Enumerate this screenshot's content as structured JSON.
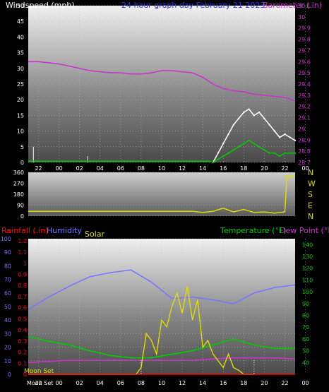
{
  "chart_data": [
    {
      "type": "line",
      "title": "24 hour graph day   February 21 2023",
      "left_axis_label": "Windspeed (mph)",
      "right_axis_label": "Barometer (.in)",
      "x_ticks": [
        "22",
        "00",
        "02",
        "04",
        "06",
        "08",
        "10",
        "12",
        "14",
        "16",
        "18",
        "20",
        "22",
        "00"
      ],
      "left_ticks": [
        "0",
        "5",
        "10",
        "15",
        "20",
        "25",
        "30",
        "35",
        "40",
        "45",
        "50"
      ],
      "right_ticks": [
        "28.7",
        "28.8",
        "28.9",
        "29",
        "29.1",
        "29.2",
        "29.3",
        "29.4",
        "29.5",
        "29.6",
        "29.7",
        "29.8",
        "29.9",
        "30",
        "30.1"
      ],
      "left_ylim": [
        0,
        50
      ],
      "right_ylim": [
        28.7,
        30.1
      ],
      "series": [
        {
          "name": "Barometer",
          "color": "#cc33cc",
          "axis": "right",
          "x": [
            0,
            1,
            2,
            3,
            4,
            5,
            6,
            7,
            8,
            9,
            10,
            11,
            12,
            13,
            14,
            15,
            16,
            17,
            18,
            19,
            20,
            21,
            22,
            23,
            24,
            25,
            26
          ],
          "values": [
            29.6,
            29.6,
            29.59,
            29.58,
            29.56,
            29.54,
            29.52,
            29.51,
            29.5,
            29.5,
            29.49,
            29.49,
            29.5,
            29.52,
            29.52,
            29.51,
            29.5,
            29.46,
            29.4,
            29.36,
            29.34,
            29.33,
            29.31,
            29.3,
            29.29,
            29.28,
            29.25
          ]
        },
        {
          "name": "Wind gust",
          "color": "#ffffff",
          "axis": "left",
          "x": [
            18,
            18.5,
            19,
            19.5,
            20,
            20.5,
            21,
            21.5,
            22,
            22.5,
            23,
            23.5,
            24,
            24.5,
            25,
            25.5,
            26
          ],
          "values": [
            0,
            3,
            6,
            9,
            12,
            14,
            16,
            17,
            15,
            16,
            14,
            12,
            10,
            8,
            9,
            8,
            7
          ]
        },
        {
          "name": "Wind average",
          "color": "#00cc00",
          "axis": "left",
          "x": [
            18,
            18.5,
            19,
            19.5,
            20,
            20.5,
            21,
            21.5,
            22,
            22.5,
            23,
            23.5,
            24,
            24.5,
            25,
            25.5,
            26
          ],
          "values": [
            0,
            1,
            2,
            3,
            4,
            5,
            6,
            7,
            6,
            5,
            4,
            3,
            3,
            2,
            3,
            3,
            3
          ]
        }
      ]
    },
    {
      "type": "line",
      "title": "",
      "left_ticks": [
        "0",
        "90",
        "180",
        "270",
        "360"
      ],
      "right_labels": [
        "N",
        "W",
        "S",
        "E",
        "N"
      ],
      "ylim": [
        0,
        360
      ],
      "series": [
        {
          "name": "Wind direction",
          "color": "#dddd00",
          "x": [
            0,
            2,
            4,
            6,
            8,
            10,
            12,
            14,
            16,
            17,
            18,
            19,
            20,
            21,
            22,
            23,
            24,
            25,
            25.2,
            26
          ],
          "values": [
            40,
            40,
            40,
            40,
            40,
            40,
            40,
            40,
            40,
            30,
            40,
            65,
            35,
            55,
            30,
            35,
            25,
            35,
            330,
            325
          ]
        }
      ]
    },
    {
      "type": "line",
      "legend": [
        "Rainfall (.in)",
        "Humidity",
        "Solar",
        "Temperature (°F)",
        "Dew Point (°F)"
      ],
      "left_ticks": [
        "0",
        "10",
        "20",
        "30",
        "40",
        "50",
        "60",
        "70",
        "80",
        "90",
        "100"
      ],
      "rain_ticks": [
        "0",
        "0.1",
        "0.2",
        "0.3",
        "0.4",
        "0.5",
        "0.6",
        "0.7",
        "0.8",
        "0.9",
        "1",
        "1.1",
        "1.2"
      ],
      "right_ticks": [
        "40",
        "50",
        "60",
        "70",
        "80",
        "90",
        "100",
        "110",
        "120",
        "130",
        "140"
      ],
      "x_ticks": [
        "22",
        "00",
        "02",
        "04",
        "06",
        "08",
        "10",
        "12",
        "14",
        "16",
        "18",
        "20",
        "22",
        "00"
      ],
      "left_ylim": [
        0,
        100
      ],
      "right_ylim": [
        30,
        145
      ],
      "moon_label": "Moon Set",
      "series": [
        {
          "name": "Humidity",
          "color": "#7777ff",
          "axis": "left",
          "x": [
            0,
            2,
            4,
            6,
            8,
            10,
            12,
            14,
            16,
            18,
            20,
            22,
            24,
            26
          ],
          "values": [
            48,
            57,
            65,
            72,
            75,
            77,
            68,
            56,
            57,
            55,
            52,
            60,
            64,
            66
          ]
        },
        {
          "name": "Temperature",
          "color": "#00cc00",
          "axis": "right",
          "x": [
            0,
            2,
            4,
            6,
            8,
            10,
            12,
            14,
            16,
            18,
            20,
            22,
            24,
            26
          ],
          "values": [
            62,
            58,
            55,
            50,
            46,
            44,
            44,
            47,
            50,
            55,
            60,
            55,
            52,
            52
          ]
        },
        {
          "name": "Dew Point",
          "color": "#cc33cc",
          "axis": "right",
          "x": [
            0,
            2,
            4,
            6,
            8,
            10,
            12,
            14,
            16,
            18,
            20,
            22,
            24,
            26
          ],
          "values": [
            40,
            41,
            42,
            42,
            42,
            42,
            42,
            42,
            42,
            43,
            44,
            44,
            44,
            43
          ]
        },
        {
          "name": "Solar",
          "color": "#dddd00",
          "axis": "left",
          "x": [
            0,
            10.5,
            11,
            11.5,
            12,
            12.5,
            13,
            13.5,
            14,
            14.5,
            15,
            15.5,
            16,
            16.5,
            17,
            17.5,
            18,
            18.5,
            19,
            19.5,
            20,
            20.5,
            21,
            22
          ],
          "values": [
            0,
            0,
            5,
            30,
            25,
            15,
            40,
            35,
            50,
            60,
            45,
            65,
            40,
            55,
            20,
            25,
            15,
            10,
            5,
            15,
            5,
            3,
            0,
            0
          ]
        },
        {
          "name": "Rainfall",
          "color": "#ff0000",
          "axis": "rain",
          "x": [
            0,
            26
          ],
          "values": [
            0,
            0
          ]
        }
      ]
    }
  ]
}
